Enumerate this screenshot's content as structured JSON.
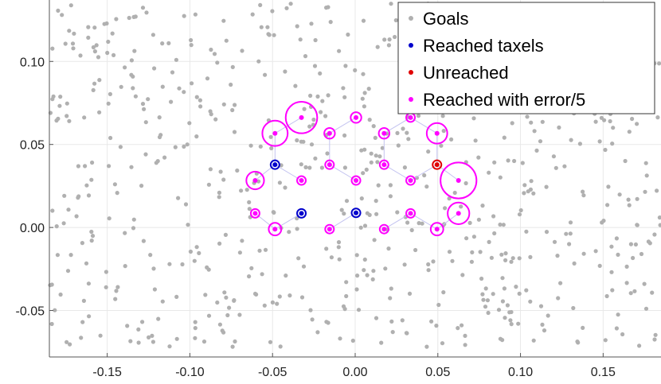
{
  "chart_data": {
    "type": "scatter",
    "title": "",
    "xlabel": "",
    "ylabel": "",
    "xlim": [
      -0.185,
      0.185
    ],
    "ylim": [
      -0.078,
      0.137
    ],
    "grid": true,
    "legend_position": "top-right",
    "xticks": [
      -0.15,
      -0.1,
      -0.05,
      0.0,
      0.05,
      0.1,
      0.15
    ],
    "xtick_labels": [
      "-0.15",
      "-0.10",
      "-0.05",
      "0.00",
      "0.05",
      "0.10",
      "0.15"
    ],
    "yticks": [
      -0.05,
      0.0,
      0.05,
      0.1
    ],
    "ytick_labels": [
      "-0.05",
      "0.00",
      "0.05",
      "0.10"
    ],
    "legend": [
      {
        "label": "Goals",
        "color": "#b0b0b0"
      },
      {
        "label": "Reached taxels",
        "color": "#0000cc"
      },
      {
        "label": "Unreached",
        "color": "#e00000"
      },
      {
        "label": "Reached with error/5",
        "color": "#ff00ff"
      }
    ],
    "colors": {
      "goals": "#b0b0b0",
      "reached": "#0000cc",
      "unreached": "#e00000",
      "error": "#ff00ff",
      "mesh": "#c4c4f0",
      "grid": "#e8e8e8"
    },
    "series": [
      {
        "name": "Goals",
        "kind": "random-uniform",
        "count": 700,
        "seed": 12345,
        "x_range": [
          -0.185,
          0.185
        ],
        "y_range": [
          -0.072,
          0.135
        ]
      },
      {
        "name": "Reached taxels",
        "points": [
          [
            -0.0485,
            0.0378
          ],
          [
            -0.0325,
            0.0085
          ],
          [
            0.0005,
            0.0088
          ]
        ]
      },
      {
        "name": "Unreached",
        "points": [
          [
            0.0495,
            0.0378
          ]
        ]
      },
      {
        "name": "Reached with error/5",
        "points": [
          [
            -0.0485,
            0.0567
          ],
          [
            -0.0325,
            0.0662
          ],
          [
            -0.0155,
            0.0567
          ],
          [
            0.0005,
            0.0662
          ],
          [
            0.0175,
            0.0567
          ],
          [
            0.0335,
            0.0662
          ],
          [
            0.0495,
            0.0567
          ],
          [
            -0.0155,
            0.0378
          ],
          [
            0.0175,
            0.0378
          ],
          [
            -0.0605,
            0.0283
          ],
          [
            -0.0325,
            0.0283
          ],
          [
            0.0005,
            0.0283
          ],
          [
            0.0335,
            0.0283
          ],
          [
            0.0625,
            0.0283
          ],
          [
            -0.0605,
            0.0085
          ],
          [
            0.0335,
            0.0085
          ],
          [
            0.0625,
            0.0085
          ],
          [
            -0.0485,
            -0.001
          ],
          [
            -0.0155,
            -0.001
          ],
          [
            0.0175,
            -0.001
          ],
          [
            0.0495,
            -0.001
          ]
        ],
        "error_radius": [
          0.0076,
          0.0095,
          0.0032,
          0.0032,
          0.0032,
          0.001,
          0.0062,
          0.0014,
          0.0014,
          0.0053,
          0.0022,
          0.001,
          0.0012,
          0.0108,
          0.0014,
          0.001,
          0.0065,
          0.0038,
          0.0014,
          0.0022,
          0.0038
        ]
      }
    ],
    "reached_error_radius": [
      0.0022,
      0.0022,
      0.0022
    ],
    "unreached_error_radius": [
      0.0022
    ]
  }
}
